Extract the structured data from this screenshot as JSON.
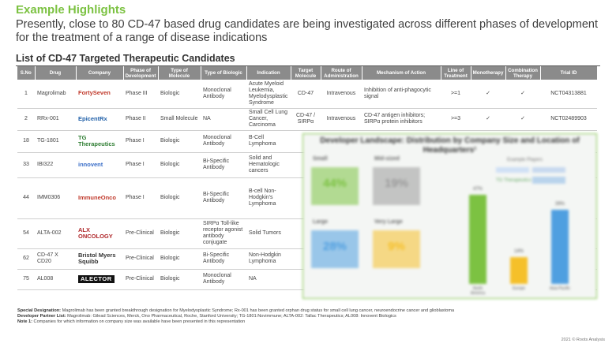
{
  "eyebrow": "Example Highlights",
  "headline": "Presently, close to 80 CD-47 based drug candidates are being investigated across different phases of development for the treatment of a range of disease indications",
  "list_title": "List of CD-47 Targeted Therapeutic Candidates",
  "table": {
    "headers": [
      "S.No",
      "Drug",
      "Company",
      "Phase of Development",
      "Type of Molecule",
      "Type of Biologic",
      "Indication",
      "Target Molecule",
      "Route of Administration",
      "Mechanism of Action",
      "Line of Treatment",
      "Monotherapy",
      "Combination Therapy",
      "Trial ID"
    ],
    "rows": [
      {
        "sno": "1",
        "drug": "Magrolimab",
        "company": "FortySeven",
        "phase": "Phase III",
        "molecule": "Biologic",
        "biologic": "Monoclonal Antibody",
        "indication": "Acute Myeloid Leukemia, Myelodysplastic Syndrome",
        "target": "CD-47",
        "route": "Intravenous",
        "moa": "Inhibition of anti-phagocytic signal",
        "line": ">=1",
        "mono": "✓",
        "combo": "✓",
        "trial": "NCT04313881"
      },
      {
        "sno": "2",
        "drug": "RRx-001",
        "company": "EpicentRx",
        "phase": "Phase II",
        "molecule": "Small Molecule",
        "biologic": "NA",
        "indication": "Small Cell Lung Cancer, Carcinoma",
        "target": "CD-47 / SIRPα",
        "route": "Intravenous",
        "moa": "CD-47 antigen inhibitors; SIRPα protein inhibitors",
        "line": ">=3",
        "mono": "✓",
        "combo": "✓",
        "trial": "NCT02489903"
      },
      {
        "sno": "18",
        "drug": "TG-1801",
        "company": "TG Therapeutics",
        "phase": "Phase I",
        "molecule": "Biologic",
        "biologic": "Monoclonal Antibody",
        "indication": "B-Cell Lymphoma",
        "target": "",
        "route": "",
        "moa": "",
        "line": "",
        "mono": "",
        "combo": "",
        "trial": ""
      },
      {
        "sno": "33",
        "drug": "IBI322",
        "company": "innovent",
        "phase": "Phase I",
        "molecule": "Biologic",
        "biologic": "Bi-Specific Antibody",
        "indication": "Solid and Hematologic cancers",
        "target": "",
        "route": "",
        "moa": "",
        "line": "",
        "mono": "",
        "combo": "",
        "trial": ""
      },
      {
        "sno": "44",
        "drug": "IMM0306",
        "company": "ImmuneOnco",
        "phase": "Phase I",
        "molecule": "Biologic",
        "biologic": "Bi-Specific Antibody",
        "indication": "B-cell Non-Hodgkin's Lymphoma",
        "target": "",
        "route": "",
        "moa": "",
        "line": "",
        "mono": "",
        "combo": "",
        "trial": ""
      },
      {
        "sno": "54",
        "drug": "ALTA-002",
        "company": "ALX ONCOLOGY",
        "phase": "Pre-Clinical",
        "molecule": "Biologic",
        "biologic": "SIRPα Toll-like receptor agonist antibody conjugate",
        "indication": "Solid Tumors",
        "target": "",
        "route": "",
        "moa": "",
        "line": "",
        "mono": "",
        "combo": "",
        "trial": ""
      },
      {
        "sno": "62",
        "drug": "CD-47 X CD20",
        "company": "Bristol Myers Squibb",
        "phase": "Pre-Clinical",
        "molecule": "Biologic",
        "biologic": "Bi-Specific Antibody",
        "indication": "Non-Hodgkin Lymphoma",
        "target": "",
        "route": "",
        "moa": "",
        "line": "",
        "mono": "",
        "combo": "",
        "trial": ""
      },
      {
        "sno": "75",
        "drug": "AL008",
        "company": "ALECTOR",
        "phase": "Pre-Clinical",
        "molecule": "Biologic",
        "biologic": "Monoclonal Antibody",
        "indication": "NA",
        "target": "",
        "route": "",
        "moa": "",
        "line": "",
        "mono": "",
        "combo": "",
        "trial": ""
      }
    ]
  },
  "overlay": {
    "title": "Developer Landscape: Distribution by Company Size and Location of Headquarters¹",
    "quadrants": [
      {
        "label": "Small",
        "value": "44%",
        "color": "#7cc242"
      },
      {
        "label": "Mid-sized",
        "value": "19%",
        "color": "#9a9a9a"
      },
      {
        "label": "Large",
        "value": "28%",
        "color": "#4f9fe0"
      },
      {
        "label": "Very Large",
        "value": "9%",
        "color": "#f5c02a"
      }
    ],
    "bars": [
      {
        "value": "47%",
        "label": "North America",
        "color": "#7cc242",
        "pct": 47
      },
      {
        "value": "14%",
        "label": "Europe",
        "color": "#f5c02a",
        "pct": 14
      },
      {
        "value": "39%",
        "label": "Asia-Pacific",
        "color": "#4f9fe0",
        "pct": 39
      }
    ],
    "legend_items": [
      "Example Players",
      "TG Therapeutics"
    ]
  },
  "notes": {
    "special_label": "Special Designation:",
    "special_text": " Magrolimab has been granted breakthrough designation for Myelodysplastic Syndrome; Rx-001 has been granted orphan drug status for small cell lung cancer, neuroendocrine cancer and glioblastoma",
    "partner_label": "Developer Partner List:",
    "partner_text": " Magrolimab: Gilead Sciences, Merck, Ono Pharmaceutical, Roche, Stanford University; TG-1801:Novimmune; ALTA-002: Tallac Therapeutics; AL008: Innovent Biologics",
    "note_label": "Note 1:",
    "note_text": " Companies for which information on company size was available have been presented in this representation"
  },
  "footer": "2021 © Roots Analysis"
}
